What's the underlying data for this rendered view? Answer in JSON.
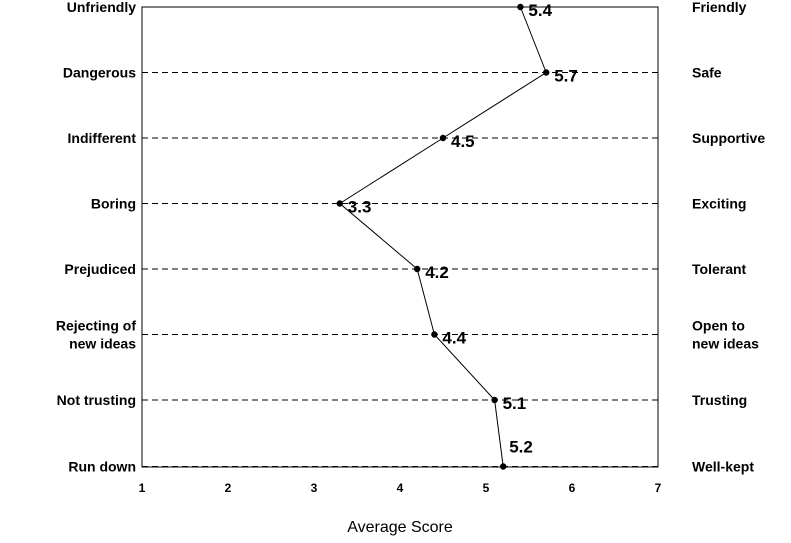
{
  "chart_data": {
    "type": "line",
    "xlabel": "Average Score",
    "xlim": [
      1,
      7
    ],
    "x_ticks": [
      "1",
      "2",
      "3",
      "4",
      "5",
      "6",
      "7"
    ],
    "grid": "dashed horizontal",
    "categories": [
      {
        "left": [
          "Unfriendly"
        ],
        "right": [
          "Friendly"
        ],
        "value": 5.4,
        "label": "5.4"
      },
      {
        "left": [
          "Dangerous"
        ],
        "right": [
          "Safe"
        ],
        "value": 5.7,
        "label": "5.7"
      },
      {
        "left": [
          "Indifferent"
        ],
        "right": [
          "Supportive"
        ],
        "value": 4.5,
        "label": "4.5"
      },
      {
        "left": [
          "Boring"
        ],
        "right": [
          "Exciting"
        ],
        "value": 3.3,
        "label": "3.3"
      },
      {
        "left": [
          "Prejudiced"
        ],
        "right": [
          "Tolerant"
        ],
        "value": 4.2,
        "label": "4.2"
      },
      {
        "left": [
          "Rejecting of",
          "new ideas"
        ],
        "right": [
          "Open to",
          "new ideas"
        ],
        "value": 4.4,
        "label": "4.4"
      },
      {
        "left": [
          "Not trusting"
        ],
        "right": [
          "Trusting"
        ],
        "value": 5.1,
        "label": "5.1"
      },
      {
        "left": [
          "Run down"
        ],
        "right": [
          "Well-kept"
        ],
        "value": 5.2,
        "label": "5.2"
      }
    ]
  }
}
